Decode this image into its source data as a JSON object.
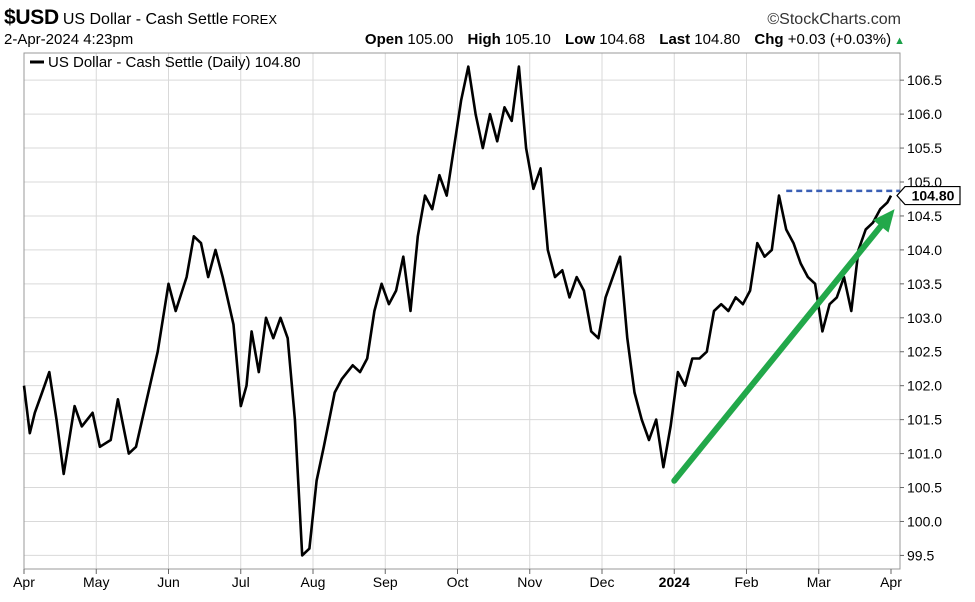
{
  "header": {
    "symbol": "$USD",
    "name": "US Dollar - Cash Settle",
    "exchange": "FOREX",
    "brand": "©StockCharts.com",
    "datetime": "2-Apr-2024 4:23pm",
    "open_label": "Open",
    "open": "105.00",
    "high_label": "High",
    "high": "105.10",
    "low_label": "Low",
    "low": "104.68",
    "last_label": "Last",
    "last": "104.80",
    "chg_label": "Chg",
    "chg": "+0.03 (+0.03%)"
  },
  "colors": {
    "price_line": "#000000",
    "trend_arrow": "#22a84a",
    "level_line": "#3a5fb5",
    "grid": "#d9d9d9"
  },
  "chart_data": {
    "type": "line",
    "legend": "US Dollar - Cash Settle (Daily) 104.80",
    "legend_position": "top-left",
    "grid": true,
    "x_labels": [
      "Apr",
      "May",
      "Jun",
      "Jul",
      "Aug",
      "Sep",
      "Oct",
      "Nov",
      "Dec",
      "2024",
      "Feb",
      "Mar",
      "Apr"
    ],
    "x_emphasis": "2024",
    "y_ticks": [
      "99.5",
      "100.0",
      "100.5",
      "101.0",
      "101.5",
      "102.0",
      "102.5",
      "103.0",
      "103.5",
      "104.0",
      "104.5",
      "105.0",
      "105.5",
      "106.0",
      "106.5"
    ],
    "ylim": [
      99.3,
      106.9
    ],
    "last_value_label": "104.80",
    "series": [
      {
        "name": "US Dollar - Cash Settle (Daily)",
        "x_month_index": [
          0,
          0.08,
          0.15,
          0.25,
          0.35,
          0.45,
          0.55,
          0.7,
          0.8,
          0.95,
          1.05,
          1.2,
          1.3,
          1.45,
          1.55,
          1.7,
          1.85,
          2.0,
          2.1,
          2.25,
          2.35,
          2.45,
          2.55,
          2.65,
          2.75,
          2.9,
          3.0,
          3.08,
          3.15,
          3.25,
          3.35,
          3.45,
          3.55,
          3.65,
          3.75,
          3.85,
          3.95,
          4.05,
          4.15,
          4.3,
          4.4,
          4.55,
          4.65,
          4.75,
          4.85,
          4.95,
          5.05,
          5.15,
          5.25,
          5.35,
          5.45,
          5.55,
          5.65,
          5.75,
          5.85,
          5.95,
          6.05,
          6.15,
          6.25,
          6.35,
          6.45,
          6.55,
          6.65,
          6.75,
          6.85,
          6.95,
          7.05,
          7.15,
          7.25,
          7.35,
          7.45,
          7.55,
          7.65,
          7.75,
          7.85,
          7.95,
          8.05,
          8.15,
          8.25,
          8.35,
          8.45,
          8.55,
          8.65,
          8.75,
          8.85,
          8.95,
          9.05,
          9.15,
          9.25,
          9.35,
          9.45,
          9.55,
          9.65,
          9.75,
          9.85,
          9.95,
          10.05,
          10.15,
          10.25,
          10.35,
          10.45,
          10.55,
          10.65,
          10.75,
          10.85,
          10.95,
          11.05,
          11.15,
          11.25,
          11.35,
          11.45,
          11.55,
          11.65,
          11.75,
          11.85,
          11.95,
          12.0
        ],
        "values": [
          102.0,
          101.3,
          101.6,
          101.9,
          102.2,
          101.5,
          100.7,
          101.7,
          101.4,
          101.6,
          101.1,
          101.2,
          101.8,
          101.0,
          101.1,
          101.8,
          102.5,
          103.5,
          103.1,
          103.6,
          104.2,
          104.1,
          103.6,
          104.0,
          103.6,
          102.9,
          101.7,
          102.0,
          102.8,
          102.2,
          103.0,
          102.7,
          103.0,
          102.7,
          101.5,
          99.5,
          99.6,
          100.6,
          101.1,
          101.9,
          102.1,
          102.3,
          102.2,
          102.4,
          103.1,
          103.5,
          103.2,
          103.4,
          103.9,
          103.1,
          104.2,
          104.8,
          104.6,
          105.1,
          104.8,
          105.5,
          106.2,
          106.7,
          106.0,
          105.5,
          106.0,
          105.6,
          106.1,
          105.9,
          106.7,
          105.5,
          104.9,
          105.2,
          104.0,
          103.6,
          103.7,
          103.3,
          103.6,
          103.4,
          102.8,
          102.7,
          103.3,
          103.6,
          103.9,
          102.7,
          101.9,
          101.5,
          101.2,
          101.5,
          100.8,
          101.4,
          102.2,
          102.0,
          102.4,
          102.4,
          102.5,
          103.1,
          103.2,
          103.1,
          103.3,
          103.2,
          103.4,
          104.1,
          103.9,
          104.0,
          104.8,
          104.3,
          104.1,
          103.8,
          103.6,
          103.5,
          102.8,
          103.2,
          103.3,
          103.6,
          103.1,
          104.0,
          104.3,
          104.4,
          104.6,
          104.7,
          104.8
        ]
      }
    ],
    "annotations": [
      {
        "kind": "horizontal_level",
        "value": 104.87,
        "from_month_index": 10.55,
        "to_month_index": 12.1
      },
      {
        "kind": "trend_arrow",
        "from": [
          9.0,
          100.6
        ],
        "to": [
          12.05,
          104.6
        ]
      }
    ]
  }
}
